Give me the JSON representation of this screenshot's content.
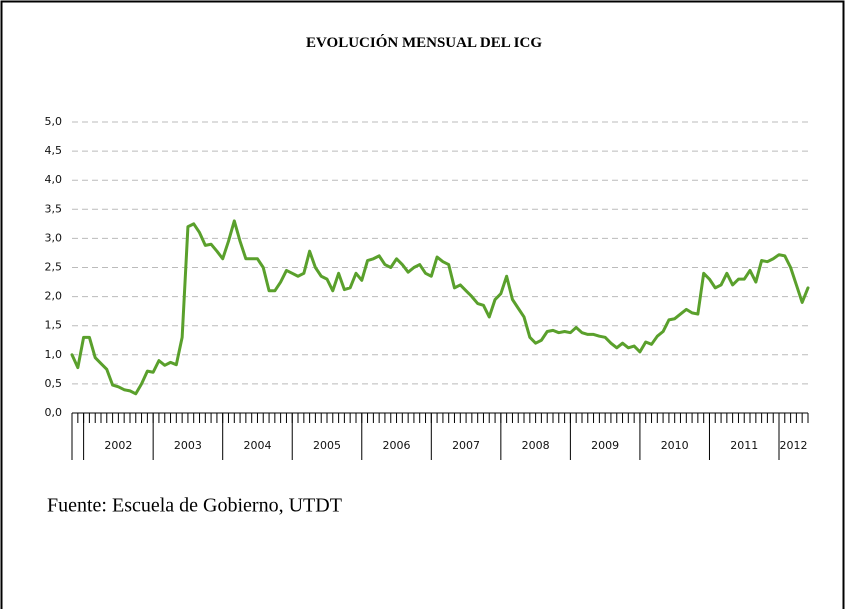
{
  "chart_data": {
    "type": "line",
    "title": "EVOLUCIÓN MENSUAL DEL ICG",
    "source": "Fuente: Escuela de Gobierno, UTDT",
    "x": [
      2001.833,
      2001.917,
      2002,
      2002.083,
      2002.167,
      2002.25,
      2002.333,
      2002.417,
      2002.5,
      2002.583,
      2002.667,
      2002.75,
      2002.833,
      2002.917,
      2003,
      2003.083,
      2003.167,
      2003.25,
      2003.333,
      2003.417,
      2003.5,
      2003.583,
      2003.667,
      2003.75,
      2003.833,
      2003.917,
      2004,
      2004.083,
      2004.167,
      2004.25,
      2004.333,
      2004.417,
      2004.5,
      2004.583,
      2004.667,
      2004.75,
      2004.833,
      2004.917,
      2005,
      2005.083,
      2005.167,
      2005.25,
      2005.333,
      2005.417,
      2005.5,
      2005.583,
      2005.667,
      2005.75,
      2005.833,
      2005.917,
      2006,
      2006.083,
      2006.167,
      2006.25,
      2006.333,
      2006.417,
      2006.5,
      2006.583,
      2006.667,
      2006.75,
      2006.833,
      2006.917,
      2007,
      2007.083,
      2007.167,
      2007.25,
      2007.333,
      2007.417,
      2007.5,
      2007.583,
      2007.667,
      2007.75,
      2007.833,
      2007.917,
      2008,
      2008.083,
      2008.167,
      2008.25,
      2008.333,
      2008.417,
      2008.5,
      2008.583,
      2008.667,
      2008.75,
      2008.833,
      2008.917,
      2009,
      2009.083,
      2009.167,
      2009.25,
      2009.333,
      2009.417,
      2009.5,
      2009.583,
      2009.667,
      2009.75,
      2009.833,
      2009.917,
      2010,
      2010.083,
      2010.167,
      2010.25,
      2010.333,
      2010.417,
      2010.5,
      2010.583,
      2010.667,
      2010.75,
      2010.833,
      2010.917,
      2011,
      2011.083,
      2011.167,
      2011.25,
      2011.333,
      2011.417,
      2011.5,
      2011.583,
      2011.667,
      2011.75,
      2011.833,
      2011.917,
      2012,
      2012.083,
      2012.167,
      2012.25,
      2012.333,
      2012.417
    ],
    "series": [
      {
        "color": "#5aa02c",
        "values": [
          1.0,
          0.78,
          1.3,
          1.3,
          0.95,
          0.85,
          0.75,
          0.48,
          0.45,
          0.4,
          0.38,
          0.33,
          0.5,
          0.72,
          0.7,
          0.9,
          0.82,
          0.87,
          0.83,
          1.3,
          3.2,
          3.25,
          3.1,
          2.88,
          2.9,
          2.78,
          2.65,
          2.95,
          3.3,
          2.95,
          2.65,
          2.65,
          2.65,
          2.5,
          2.1,
          2.1,
          2.25,
          2.45,
          2.4,
          2.35,
          2.4,
          2.78,
          2.5,
          2.35,
          2.3,
          2.1,
          2.4,
          2.12,
          2.15,
          2.4,
          2.28,
          2.62,
          2.65,
          2.7,
          2.55,
          2.5,
          2.65,
          2.55,
          2.42,
          2.5,
          2.55,
          2.4,
          2.35,
          2.68,
          2.6,
          2.55,
          2.15,
          2.2,
          2.1,
          2.0,
          1.88,
          1.85,
          1.65,
          1.95,
          2.05,
          2.35,
          1.95,
          1.8,
          1.65,
          1.3,
          1.2,
          1.25,
          1.4,
          1.42,
          1.38,
          1.4,
          1.38,
          1.47,
          1.38,
          1.35,
          1.35,
          1.32,
          1.3,
          1.2,
          1.12,
          1.2,
          1.12,
          1.15,
          1.05,
          1.22,
          1.18,
          1.32,
          1.4,
          1.6,
          1.62,
          1.7,
          1.78,
          1.72,
          1.7,
          2.4,
          2.3,
          2.15,
          2.2,
          2.4,
          2.2,
          2.3,
          2.3,
          2.45,
          2.25,
          2.62,
          2.6,
          2.65,
          2.72,
          2.7,
          2.5,
          2.2,
          1.9,
          2.15
        ]
      }
    ],
    "xlim": [
      2001.833,
      2012.417
    ],
    "xticks": [
      2002,
      2003,
      2004,
      2005,
      2006,
      2007,
      2008,
      2009,
      2010,
      2011,
      2012
    ],
    "ylim": [
      0,
      5
    ],
    "yticks": [
      {
        "value": 0,
        "label": "0,0"
      },
      {
        "value": 0.5,
        "label": "0,5"
      },
      {
        "value": 1,
        "label": "1,0"
      },
      {
        "value": 1.5,
        "label": "1,5"
      },
      {
        "value": 2,
        "label": "2,0"
      },
      {
        "value": 2.5,
        "label": "2,5"
      },
      {
        "value": 3,
        "label": "3,0"
      },
      {
        "value": 3.5,
        "label": "3,5"
      },
      {
        "value": 4,
        "label": "4,0"
      },
      {
        "value": 4.5,
        "label": "4,5"
      },
      {
        "value": 5,
        "label": "5,0"
      }
    ],
    "grid": true
  }
}
